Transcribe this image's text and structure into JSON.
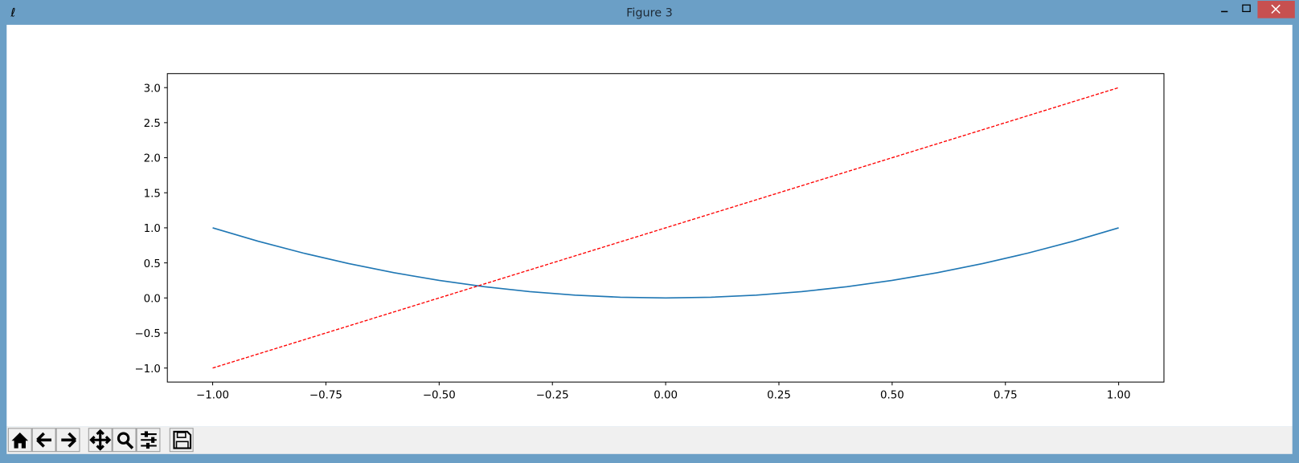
{
  "window": {
    "title": "Figure 3"
  },
  "chart_data": {
    "type": "line",
    "x": [
      -1,
      -0.9,
      -0.8,
      -0.7,
      -0.6,
      -0.5,
      -0.4,
      -0.3,
      -0.2,
      -0.1,
      0,
      0.1,
      0.2,
      0.3,
      0.4,
      0.5,
      0.6,
      0.7,
      0.8,
      0.9,
      1
    ],
    "series": [
      {
        "color": "#1f77b4",
        "style": "solid",
        "values": [
          1,
          0.81,
          0.64,
          0.49,
          0.36,
          0.25,
          0.16,
          0.09,
          0.04,
          0.01,
          0,
          0.01,
          0.04,
          0.09,
          0.16,
          0.25,
          0.36,
          0.49,
          0.64,
          0.81,
          1
        ]
      },
      {
        "color": "#ff0000",
        "style": "dashed",
        "values": [
          -1,
          -0.8,
          -0.6,
          -0.4,
          -0.2,
          0,
          0.2,
          0.4,
          0.6,
          0.8,
          1,
          1.2,
          1.4,
          1.6,
          1.8,
          2,
          2.2,
          2.4,
          2.6,
          2.8,
          3
        ]
      }
    ],
    "xlim": [
      -1.1,
      1.1
    ],
    "ylim": [
      -1.2,
      3.2
    ],
    "xticks": [
      {
        "value": -1,
        "label": "−1.00"
      },
      {
        "value": -0.75,
        "label": "−0.75"
      },
      {
        "value": -0.5,
        "label": "−0.50"
      },
      {
        "value": -0.25,
        "label": "−0.25"
      },
      {
        "value": 0,
        "label": "0.00"
      },
      {
        "value": 0.25,
        "label": "0.25"
      },
      {
        "value": 0.5,
        "label": "0.50"
      },
      {
        "value": 0.75,
        "label": "0.75"
      },
      {
        "value": 1,
        "label": "1.00"
      }
    ],
    "yticks": [
      {
        "value": -1,
        "label": "−1.0"
      },
      {
        "value": -0.5,
        "label": "−0.5"
      },
      {
        "value": 0,
        "label": "0.0"
      },
      {
        "value": 0.5,
        "label": "0.5"
      },
      {
        "value": 1,
        "label": "1.0"
      },
      {
        "value": 1.5,
        "label": "1.5"
      },
      {
        "value": 2,
        "label": "2.0"
      },
      {
        "value": 2.5,
        "label": "2.5"
      },
      {
        "value": 3,
        "label": "3.0"
      }
    ],
    "grid": false
  }
}
